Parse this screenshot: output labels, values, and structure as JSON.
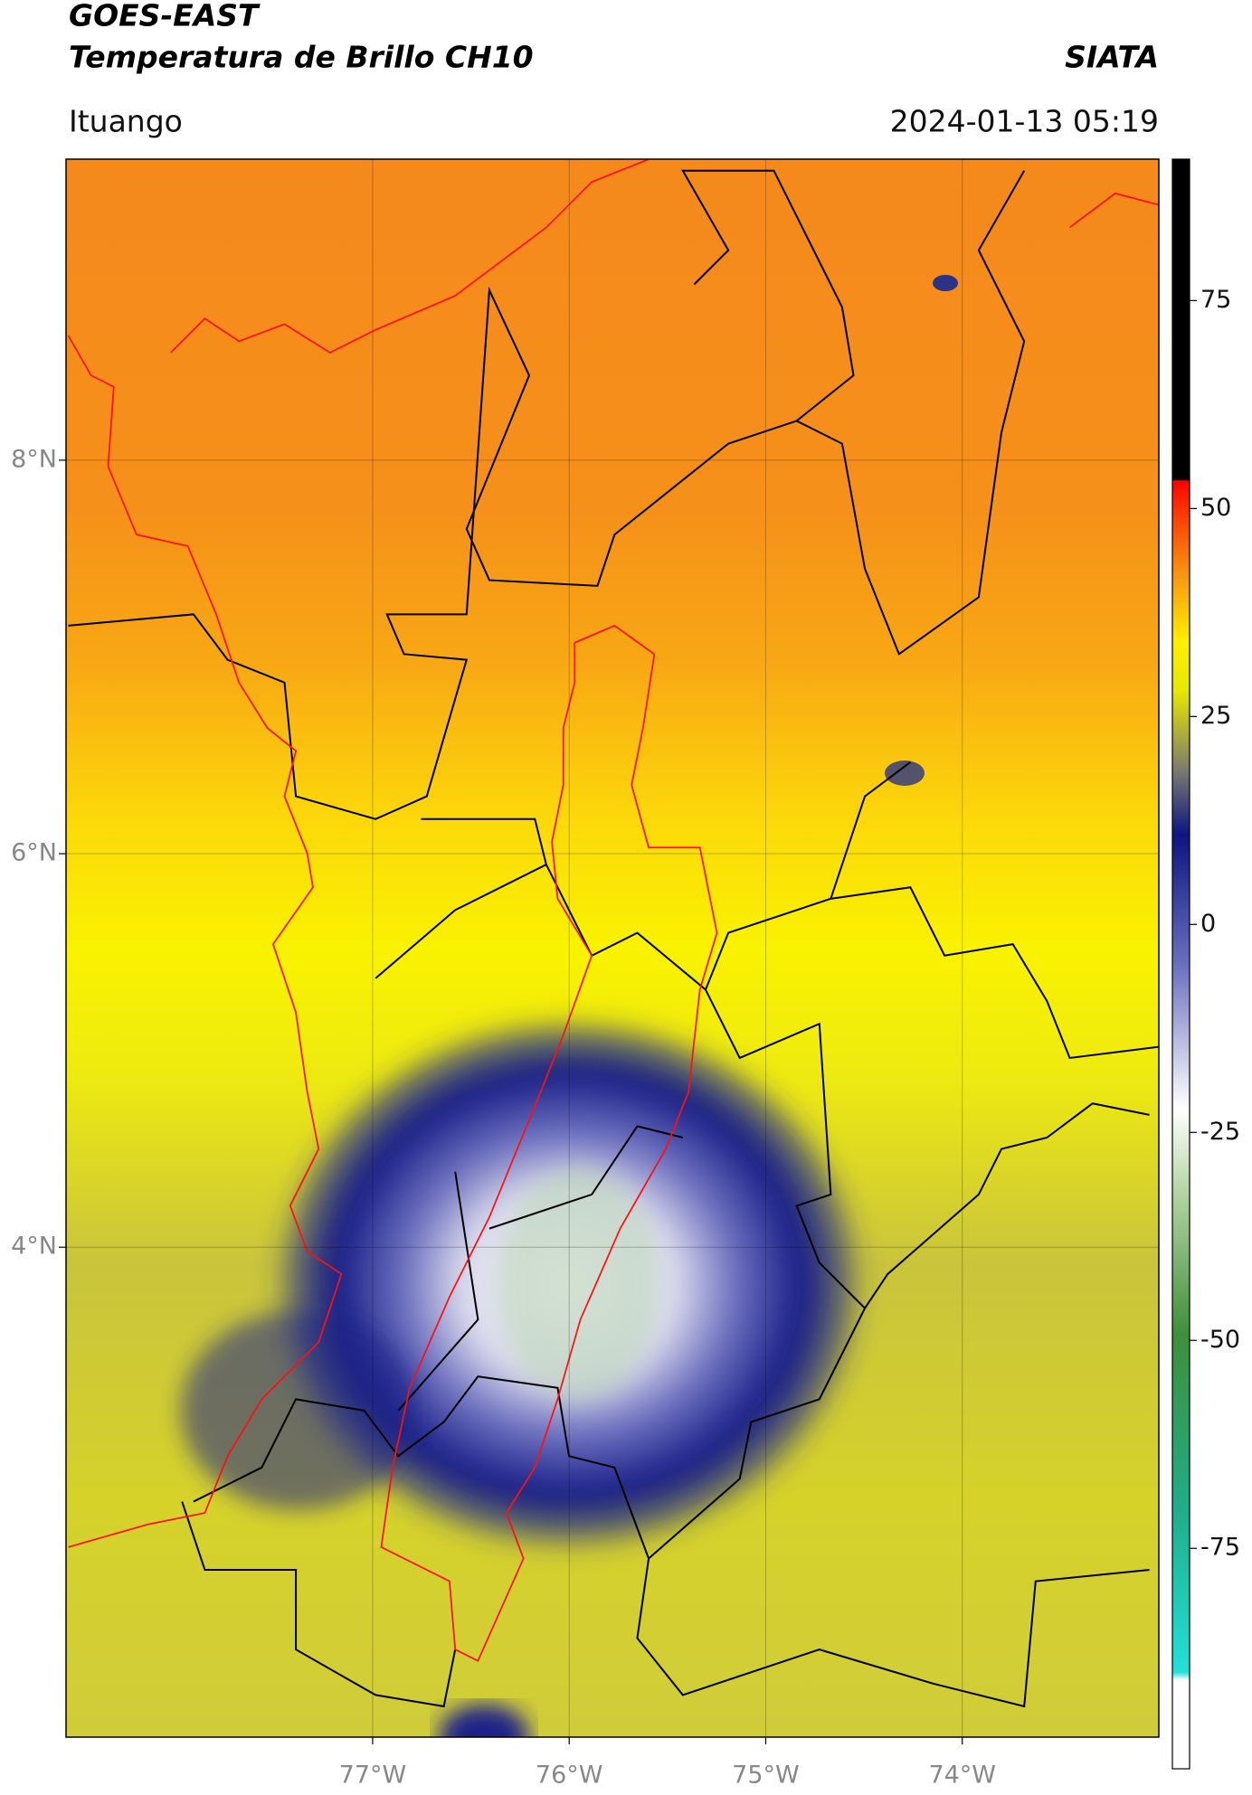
{
  "map": {
    "title": "GOES-EAST",
    "subtitle": "Temperatura de Brillo CH10",
    "source": "SIATA",
    "region": "Ituango",
    "datetime": "2024-01-13 05:19",
    "xlim": [
      -78.56,
      -73.0
    ],
    "ylim": [
      1.51,
      9.53
    ],
    "xticks": [
      {
        "value": -77,
        "label": "77°W"
      },
      {
        "value": -76,
        "label": "76°W"
      },
      {
        "value": -75,
        "label": "75°W"
      },
      {
        "value": -74,
        "label": "74°W"
      }
    ],
    "yticks": [
      {
        "value": 8,
        "label": "8°N"
      },
      {
        "value": 6,
        "label": "6°N"
      },
      {
        "value": 4,
        "label": "4°N"
      }
    ],
    "grid": true,
    "colorbar": {
      "lim": [
        -101.5,
        92
      ],
      "ticks": [
        75,
        50,
        25,
        0,
        -25,
        -50,
        -75
      ]
    }
  }
}
